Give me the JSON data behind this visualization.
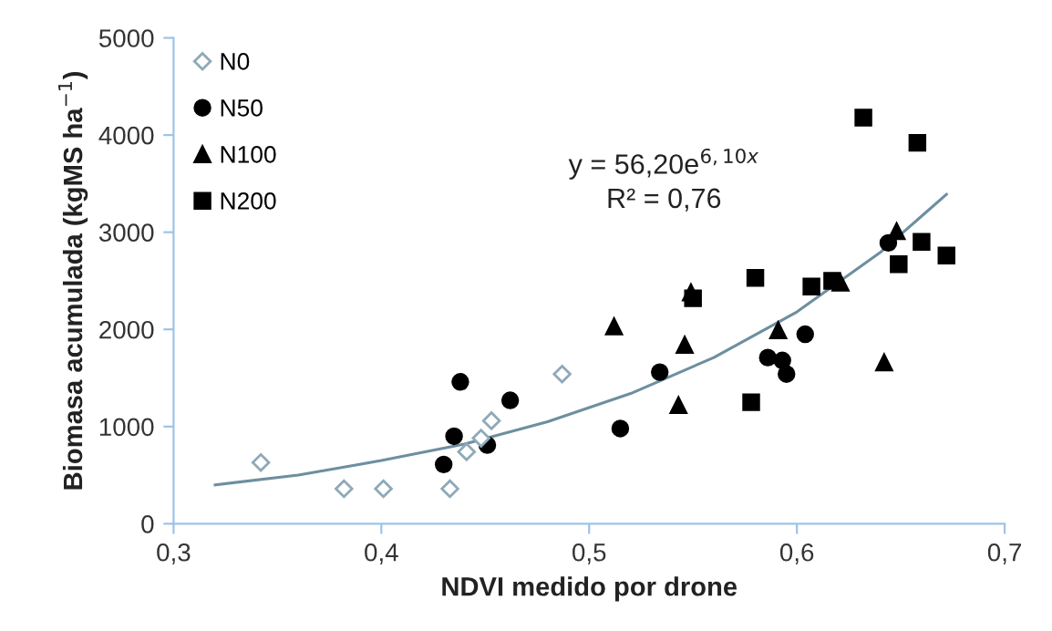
{
  "chart_data": {
    "type": "scatter",
    "xlabel": "NDVI medido por drone",
    "ylabel": "Biomasa acumulada (kgMS ha$^{−1}$)",
    "xlim": [
      0.3,
      0.7
    ],
    "ylim": [
      0,
      5000
    ],
    "xticks": [
      {
        "value": 0.3,
        "label": "0,3"
      },
      {
        "value": 0.4,
        "label": "0,4"
      },
      {
        "value": 0.5,
        "label": "0,5"
      },
      {
        "value": 0.6,
        "label": "0,6"
      },
      {
        "value": 0.7,
        "label": "0,7"
      }
    ],
    "yticks": [
      0,
      1000,
      2000,
      3000,
      4000,
      5000
    ],
    "grid": false,
    "legend": "top left",
    "annotations": [
      "y = 56,20e$^{6,10x}$",
      "R² = 0,76"
    ],
    "series": [
      {
        "name": "N0",
        "color": "#8fa9b8",
        "marker": "diamond",
        "x": [
          0.342,
          0.382,
          0.401,
          0.433,
          0.441,
          0.448,
          0.453,
          0.487
        ],
        "values": [
          630,
          360,
          360,
          360,
          740,
          880,
          1060,
          1540
        ]
      },
      {
        "name": "N50",
        "color": "#000000",
        "marker": "circle",
        "x": [
          0.438,
          0.435,
          0.43,
          0.451,
          0.462,
          0.534,
          0.515,
          0.586,
          0.593,
          0.595,
          0.604,
          0.644
        ],
        "values": [
          1460,
          900,
          610,
          810,
          1270,
          1560,
          980,
          1710,
          1680,
          1540,
          1950,
          2890
        ]
      },
      {
        "name": "N100",
        "color": "#000000",
        "marker": "triangle",
        "x": [
          0.512,
          0.549,
          0.546,
          0.543,
          0.591,
          0.621,
          0.648,
          0.642
        ],
        "values": [
          2030,
          2380,
          1840,
          1220,
          1990,
          2480,
          3010,
          1660
        ]
      },
      {
        "name": "N200",
        "color": "#000000",
        "marker": "square",
        "x": [
          0.632,
          0.658,
          0.55,
          0.58,
          0.607,
          0.617,
          0.578,
          0.649,
          0.66,
          0.672
        ],
        "values": [
          4180,
          3920,
          2320,
          2530,
          2440,
          2500,
          1250,
          2670,
          2900,
          2760
        ]
      },
      {
        "type": "line",
        "color": "#6d8fa0",
        "marker": "none",
        "x": [
          0.32,
          0.36,
          0.4,
          0.44,
          0.48,
          0.52,
          0.56,
          0.6,
          0.64,
          0.672
        ],
        "values": [
          400,
          500,
          650,
          820,
          1050,
          1340,
          1710,
          2180,
          2790,
          3390
        ]
      }
    ]
  }
}
